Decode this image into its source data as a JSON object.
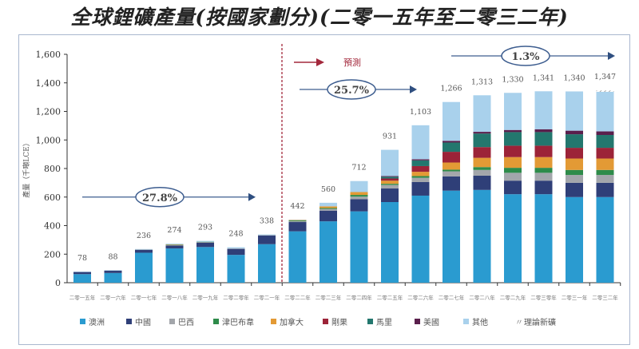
{
  "chart_data": {
    "type": "bar",
    "stacked": true,
    "title": "全球鋰礦產量(按國家劃分)(二零一五年至二零三二年)",
    "ylabel": "產量（千噸LCE）",
    "xlabel": "",
    "ylim": [
      0,
      1600
    ],
    "yticks": [
      "0",
      "200",
      "400",
      "600",
      "800",
      "1,000",
      "1,200",
      "1,400",
      "1,600"
    ],
    "yticks_values": [
      0,
      200,
      400,
      600,
      800,
      1000,
      1200,
      1400,
      1600
    ],
    "categories": [
      "二零一五年",
      "二零一六年",
      "二零一七年",
      "二零一八年",
      "二零一九年",
      "二零二零年",
      "二零二一年",
      "二零二二年",
      "二零二三年",
      "二零二四年",
      "二零二五年",
      "二零二六年",
      "二零二七年",
      "二零二八年",
      "二零二九年",
      "二零三零年",
      "二零三一年",
      "二零三二年"
    ],
    "totals": [
      "78",
      "88",
      "236",
      "274",
      "293",
      "248",
      "338",
      "442",
      "560",
      "712",
      "931",
      "1,103",
      "1,266",
      "1,313",
      "1,330",
      "1,341",
      "1,340",
      "1,347"
    ],
    "series": [
      {
        "name": "澳洲",
        "color": "#2a9bd0",
        "values": [
          60,
          68,
          210,
          240,
          250,
          195,
          270,
          360,
          430,
          500,
          565,
          610,
          645,
          650,
          620,
          620,
          600,
          600
        ]
      },
      {
        "name": "中國",
        "color": "#2f3f78",
        "values": [
          15,
          17,
          20,
          20,
          30,
          42,
          60,
          65,
          75,
          85,
          95,
          95,
          100,
          100,
          95,
          95,
          100,
          100
        ]
      },
      {
        "name": "巴西",
        "color": "#a3a6ab",
        "values": [
          0,
          0,
          2,
          4,
          5,
          3,
          3,
          6,
          12,
          18,
          25,
          30,
          35,
          40,
          55,
          55,
          55,
          55
        ]
      },
      {
        "name": "津巴布韋",
        "color": "#2e8b4a",
        "values": [
          0,
          0,
          0,
          3,
          2,
          0,
          0,
          5,
          6,
          12,
          8,
          12,
          12,
          20,
          35,
          35,
          35,
          35
        ]
      },
      {
        "name": "加拿大",
        "color": "#e39a35",
        "values": [
          0,
          0,
          0,
          2,
          0,
          0,
          0,
          3,
          12,
          20,
          22,
          30,
          50,
          65,
          75,
          75,
          80,
          80
        ]
      },
      {
        "name": "剛果",
        "color": "#9c2338",
        "values": [
          0,
          0,
          0,
          0,
          0,
          0,
          0,
          0,
          0,
          0,
          15,
          40,
          75,
          75,
          80,
          80,
          75,
          75
        ]
      },
      {
        "name": "馬里",
        "color": "#23776e",
        "values": [
          0,
          0,
          0,
          0,
          0,
          0,
          0,
          0,
          0,
          0,
          12,
          40,
          65,
          95,
          95,
          95,
          95,
          90
        ]
      },
      {
        "name": "美國",
        "color": "#5a1f4c",
        "values": [
          0,
          0,
          0,
          0,
          0,
          0,
          0,
          0,
          0,
          0,
          5,
          8,
          12,
          12,
          15,
          20,
          25,
          25
        ]
      },
      {
        "name": "其他",
        "color": "#a9d1ec",
        "values": [
          3,
          3,
          4,
          5,
          6,
          8,
          5,
          3,
          25,
          77,
          184,
          238,
          272,
          256,
          260,
          266,
          275,
          277
        ]
      },
      {
        "name": "理論新礦",
        "color": "#ffffff",
        "pattern": "hatched",
        "values": [
          0,
          0,
          0,
          0,
          0,
          0,
          0,
          0,
          0,
          0,
          0,
          0,
          0,
          0,
          0,
          0,
          0,
          10
        ]
      }
    ],
    "annotations": {
      "cagr_historical": "27.8%",
      "cagr_forecast_1": "25.7%",
      "cagr_forecast_2": "1.3%",
      "forecast_label": "預測"
    },
    "legend_position": "bottom",
    "grid": false
  }
}
